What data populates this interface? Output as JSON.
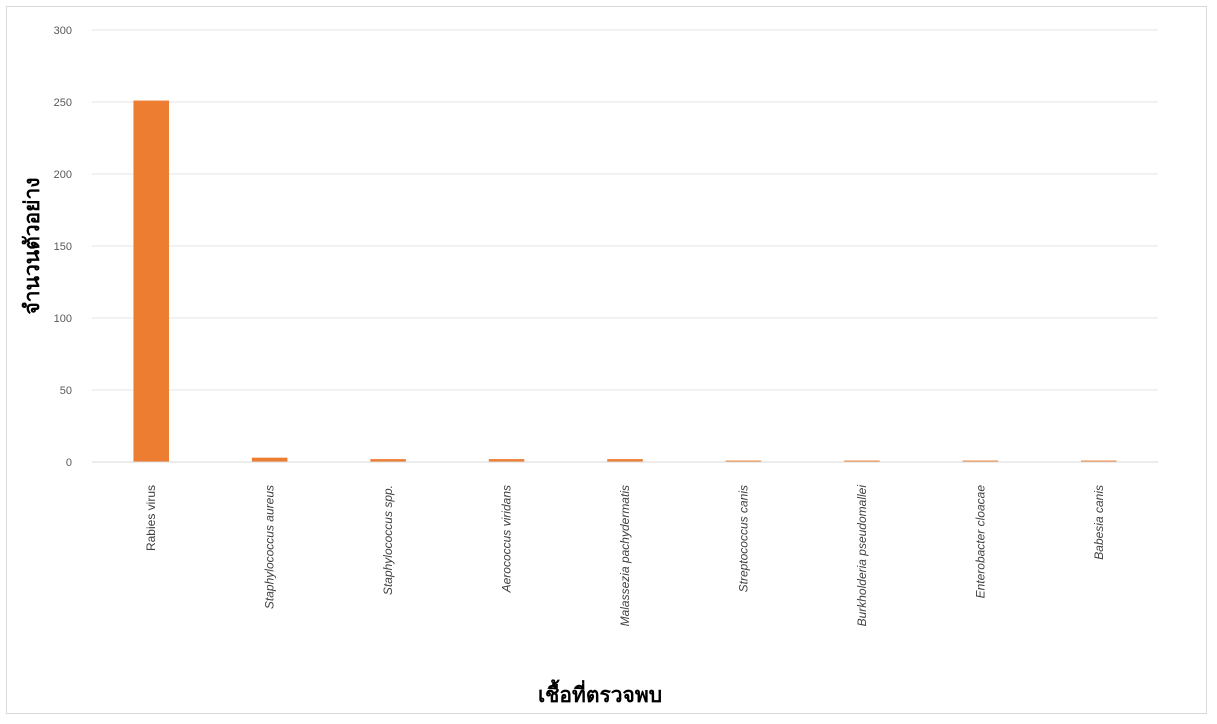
{
  "chart_data": {
    "type": "bar",
    "title": "",
    "xlabel": "เชื้อที่ตรวจพบ",
    "ylabel": "จำนวนตัวอย่าง",
    "ylim": [
      0,
      300
    ],
    "yticks": [
      0,
      50,
      100,
      150,
      200,
      250,
      300
    ],
    "grid": true,
    "legend": "none",
    "bar_color": "#ED7D31",
    "categories": [
      "Rabies virus",
      "Staphylococcus aureus",
      "Staphylococcus spp.",
      "Aerococcus viridans",
      "Malassezia pachydermatis",
      "Streptococcus canis",
      "Burkholderia pseudomallei",
      "Enterobacter cloacae",
      "Babesia canis"
    ],
    "italic_categories": [
      false,
      true,
      true,
      true,
      true,
      true,
      true,
      true,
      true
    ],
    "values": [
      251,
      3,
      2,
      2,
      2,
      1,
      1,
      1,
      1
    ]
  }
}
